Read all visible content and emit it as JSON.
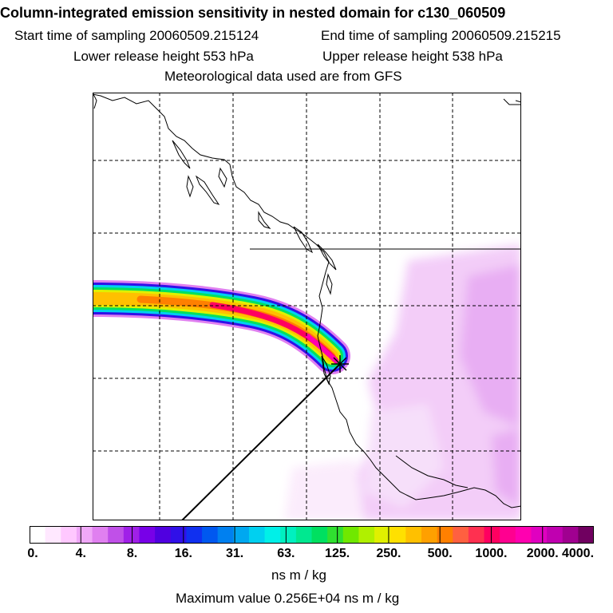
{
  "header": {
    "title": "Column-integrated emission sensitivity in nested domain for c130_060509",
    "start_time": "Start time of sampling 20060509.215124",
    "end_time": "End time of sampling 20060509.215215",
    "lower_height": "Lower release height  553 hPa",
    "upper_height": "Upper release height  538 hPa",
    "met_data": "Meteorological data used are from GFS"
  },
  "colorbar": {
    "ticks": [
      "0.",
      "4.",
      "8.",
      "16.",
      "31.",
      "63.",
      "125.",
      "250.",
      "500.",
      "1000.",
      "2000.",
      "4000."
    ],
    "colors": [
      "#ffffff",
      "#ffe8ff",
      "#ffc8ff",
      "#f0a8f8",
      "#e080f0",
      "#c050e8",
      "#a020e8",
      "#7800e8",
      "#5000e0",
      "#3010e8",
      "#1030f0",
      "#0058f0",
      "#0080f0",
      "#00a8f0",
      "#00d0f0",
      "#00f0e8",
      "#00f0c0",
      "#00e890",
      "#00e060",
      "#30e030",
      "#70e800",
      "#b0f000",
      "#e0f000",
      "#ffe000",
      "#ffc000",
      "#ffa000",
      "#ff8000",
      "#ff6040",
      "#ff3050",
      "#ff0060",
      "#ff0090",
      "#ff00b0",
      "#e000c0",
      "#c000b0",
      "#a00090",
      "#700060"
    ],
    "units": "ns m / kg"
  },
  "footer": {
    "max_value": "Maximum value  0.256E+04 ns m / kg"
  }
}
